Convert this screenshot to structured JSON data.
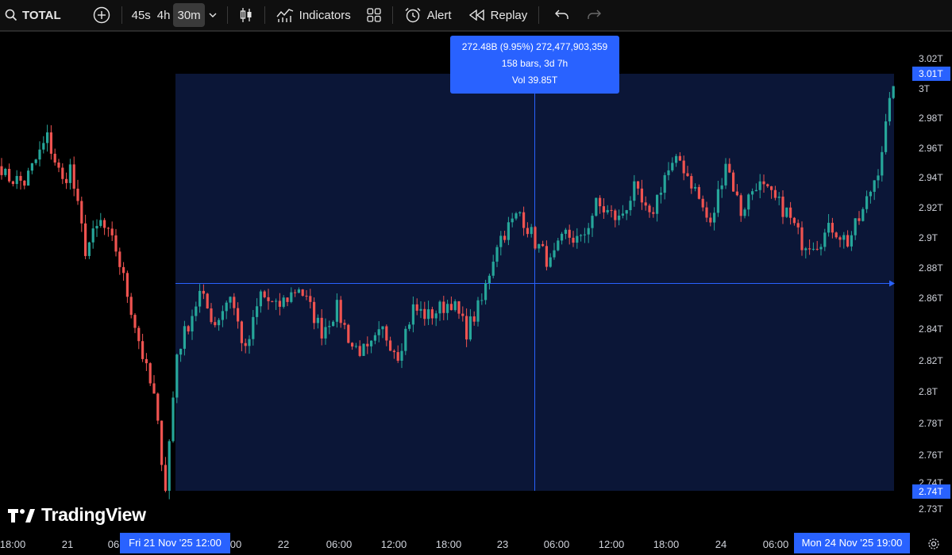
{
  "toolbar": {
    "symbol": "TOTAL",
    "intervals": [
      "45s",
      "4h",
      "30m"
    ],
    "active_interval": "30m",
    "indicators_label": "Indicators",
    "alert_label": "Alert",
    "replay_label": "Replay"
  },
  "colors": {
    "up": "#26a69a",
    "down": "#ef5350",
    "accent": "#2962ff",
    "range_bg": "#0b1637"
  },
  "measure_tooltip": {
    "line1": "272.48B (9.95%) 272,477,903,359",
    "line2": "158 bars, 3d 7h",
    "line3": "Vol 39.85T"
  },
  "branding": "TradingView",
  "chart_data": {
    "type": "candlestick",
    "title": "",
    "y_unit": "T",
    "ylim": [
      2.725,
      3.029
    ],
    "y_ticks": [
      "3.02T",
      "3T",
      "2.98T",
      "2.96T",
      "2.94T",
      "2.92T",
      "2.9T",
      "2.88T",
      "2.86T",
      "2.84T",
      "2.82T",
      "2.8T",
      "2.78T",
      "2.76T",
      "2.74T",
      "2.73T"
    ],
    "x_ticks": [
      "18:00",
      "21",
      "06",
      "00",
      "22",
      "06:00",
      "12:00",
      "18:00",
      "23",
      "06:00",
      "12:00",
      "18:00",
      "24",
      "06:00",
      "19:00"
    ],
    "x_highlight_start": "Fri 21 Nov '25   12:00",
    "x_highlight_end": "Mon 24 Nov '25   19:00",
    "price_label_current": "3.01T",
    "price_label_low": "2.74T",
    "close_anchors": [
      [
        0,
        2.95
      ],
      [
        6,
        2.945
      ],
      [
        12,
        2.975
      ],
      [
        16,
        2.945
      ],
      [
        18,
        2.955
      ],
      [
        22,
        2.9
      ],
      [
        26,
        2.918
      ],
      [
        30,
        2.9
      ],
      [
        34,
        2.86
      ],
      [
        38,
        2.818
      ],
      [
        40,
        2.8
      ],
      [
        43,
        2.74
      ],
      [
        46,
        2.83
      ],
      [
        52,
        2.87
      ],
      [
        56,
        2.85
      ],
      [
        60,
        2.87
      ],
      [
        64,
        2.83
      ],
      [
        68,
        2.87
      ],
      [
        72,
        2.86
      ],
      [
        78,
        2.875
      ],
      [
        84,
        2.845
      ],
      [
        88,
        2.86
      ],
      [
        92,
        2.835
      ],
      [
        96,
        2.83
      ],
      [
        100,
        2.845
      ],
      [
        104,
        2.83
      ],
      [
        108,
        2.86
      ],
      [
        112,
        2.855
      ],
      [
        118,
        2.865
      ],
      [
        122,
        2.845
      ],
      [
        126,
        2.865
      ],
      [
        130,
        2.905
      ],
      [
        136,
        2.925
      ],
      [
        140,
        2.905
      ],
      [
        144,
        2.89
      ],
      [
        148,
        2.91
      ],
      [
        152,
        2.905
      ],
      [
        156,
        2.93
      ],
      [
        162,
        2.92
      ],
      [
        166,
        2.94
      ],
      [
        170,
        2.92
      ],
      [
        174,
        2.95
      ],
      [
        178,
        2.96
      ],
      [
        182,
        2.94
      ],
      [
        186,
        2.915
      ],
      [
        190,
        2.96
      ],
      [
        194,
        2.925
      ],
      [
        198,
        2.945
      ],
      [
        202,
        2.935
      ],
      [
        206,
        2.925
      ],
      [
        210,
        2.905
      ],
      [
        214,
        2.905
      ],
      [
        218,
        2.915
      ],
      [
        222,
        2.905
      ],
      [
        226,
        2.925
      ],
      [
        230,
        2.955
      ],
      [
        234,
        3.01
      ]
    ]
  }
}
